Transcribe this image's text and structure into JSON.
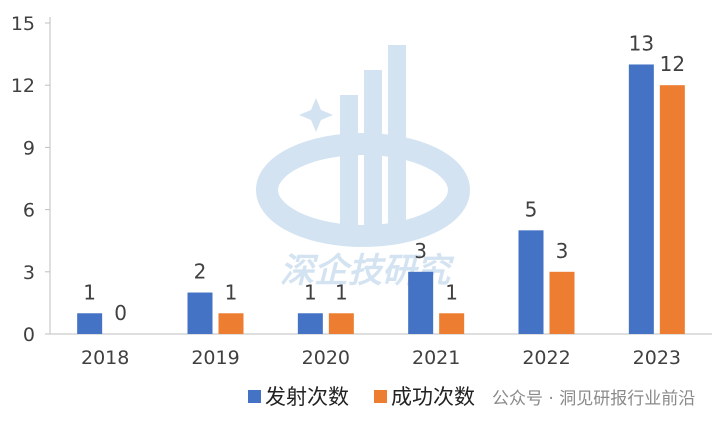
{
  "chart_data": {
    "type": "bar",
    "categories": [
      "2018",
      "2019",
      "2020",
      "2021",
      "2022",
      "2023"
    ],
    "series": [
      {
        "name": "发射次数",
        "values": [
          1,
          2,
          1,
          3,
          5,
          13
        ],
        "color": "#4472C4"
      },
      {
        "name": "成功次数",
        "values": [
          0,
          1,
          1,
          1,
          3,
          12
        ],
        "color": "#ED7D31"
      }
    ],
    "ylim": [
      0,
      15
    ],
    "yticks": [
      0,
      3,
      6,
      9,
      12,
      15
    ],
    "grid": false,
    "legend_position": "bottom"
  },
  "watermark": {
    "logo_text": "深企技研究",
    "source_text": "公众号 · 洞见研报行业前沿"
  }
}
